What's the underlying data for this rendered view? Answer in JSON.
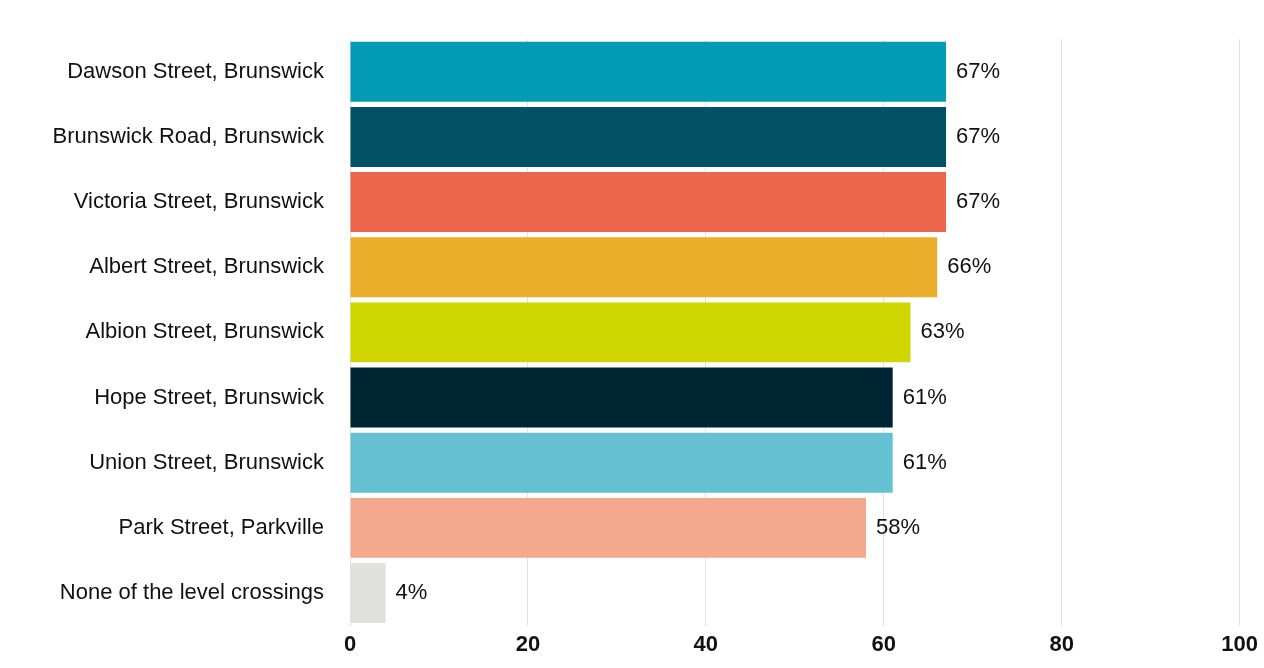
{
  "chart_data": {
    "type": "bar",
    "orientation": "horizontal",
    "categories": [
      "Dawson Street, Brunswick",
      "Brunswick Road, Brunswick",
      "Victoria Street, Brunswick",
      "Albert Street, Brunswick",
      "Albion Street, Brunswick",
      "Hope Street, Brunswick",
      "Union Street, Brunswick",
      "Park Street, Parkville",
      "None of the level crossings"
    ],
    "values": [
      67,
      67,
      67,
      66,
      63,
      61,
      61,
      58,
      4
    ],
    "colors": [
      "#039bb5",
      "#005264",
      "#ec664d",
      "#ebae2b",
      "#cfd600",
      "#002532",
      "#65c0d2",
      "#f4a98f",
      "#e0e0df"
    ],
    "value_labels": [
      "67%",
      "67%",
      "67%",
      "66%",
      "63%",
      "61%",
      "61%",
      "58%",
      "4%"
    ],
    "xlim": [
      0,
      100
    ],
    "xticks": [
      0,
      20,
      40,
      60,
      80,
      100
    ],
    "grid": "x",
    "legend": false
  }
}
